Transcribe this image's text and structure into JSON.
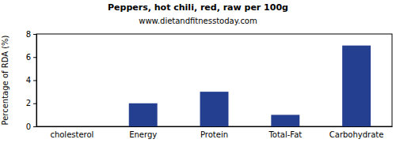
{
  "chart_data": {
    "type": "bar",
    "title": "Peppers, hot chili, red, raw per 100g",
    "subtitle": "www.dietandfitnesstoday.com",
    "ylabel": "Percentage of RDA (%)",
    "categories": [
      "cholesterol",
      "Energy",
      "Protein",
      "Total-Fat",
      "Carbohydrate"
    ],
    "values": [
      0,
      2,
      3,
      1,
      7
    ],
    "color": "#243f8f",
    "ylim": [
      0,
      8
    ],
    "yticks": [
      0,
      2,
      4,
      6,
      8
    ],
    "grid": false
  }
}
